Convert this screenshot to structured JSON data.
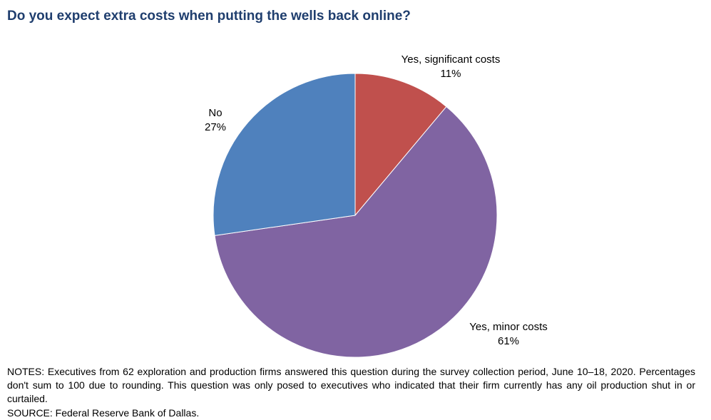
{
  "title": "Do you expect extra costs when putting the wells back online?",
  "chart_data": {
    "type": "pie",
    "title": "Do you expect extra costs when putting the wells back online?",
    "slices": [
      {
        "label": "Yes, significant costs",
        "value": 11,
        "value_label": "11%",
        "color": "#c0504d"
      },
      {
        "label": "Yes, minor costs",
        "value": 61,
        "value_label": "61%",
        "color": "#8064a2"
      },
      {
        "label": "No",
        "value": 27,
        "value_label": "27%",
        "color": "#4f81bd"
      }
    ]
  },
  "notes": "NOTES: Executives from 62 exploration and production firms answered this question during the survey collection period, June 10–18, 2020. Percentages don't sum to 100 due to rounding. This question was only posed to executives who indicated that their firm currently has any oil production shut in or curtailed.",
  "source": "SOURCE: Federal Reserve Bank of Dallas."
}
